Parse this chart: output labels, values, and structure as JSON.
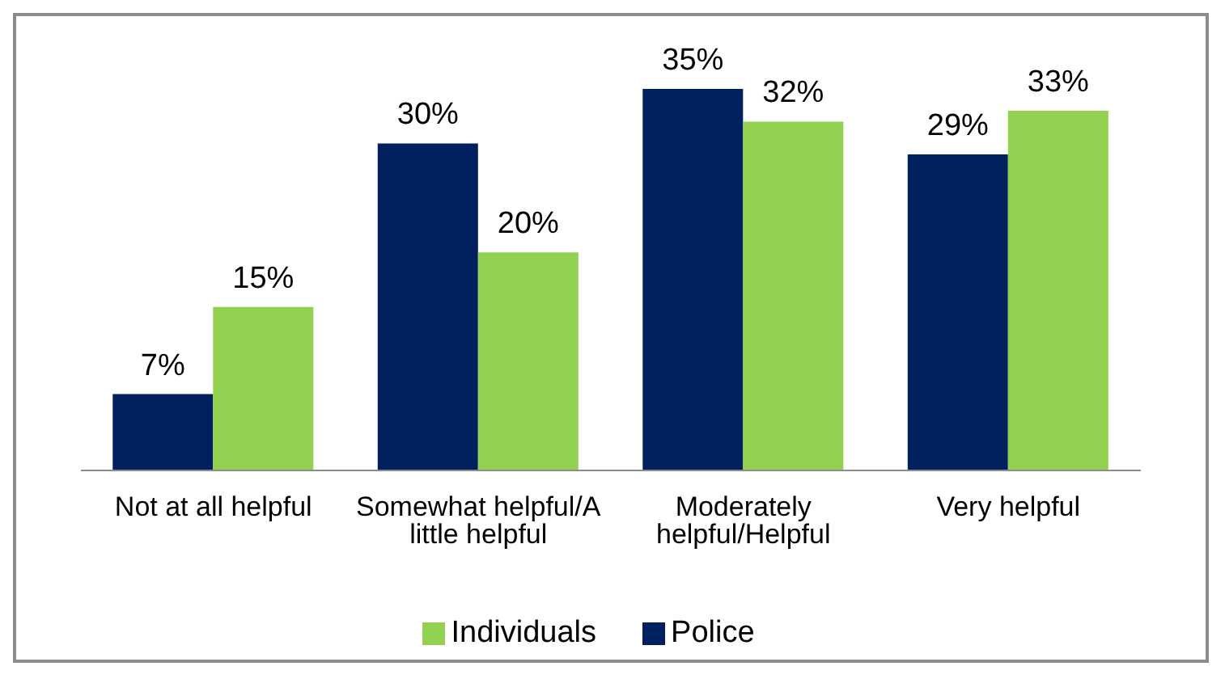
{
  "chart_data": {
    "type": "bar",
    "categories": [
      "Not at all helpful",
      "Somewhat helpful/A little helpful",
      "Moderately helpful/Helpful",
      "Very helpful"
    ],
    "series": [
      {
        "name": "Police",
        "color": "#002060",
        "values": [
          7,
          30,
          35,
          29
        ],
        "value_labels": [
          "7%",
          "30%",
          "35%",
          "29%"
        ]
      },
      {
        "name": "Individuals",
        "color": "#92d050",
        "values": [
          15,
          20,
          32,
          33
        ],
        "value_labels": [
          "15%",
          "20%",
          "32%",
          "33%"
        ]
      }
    ],
    "legend": "bottom"
  }
}
